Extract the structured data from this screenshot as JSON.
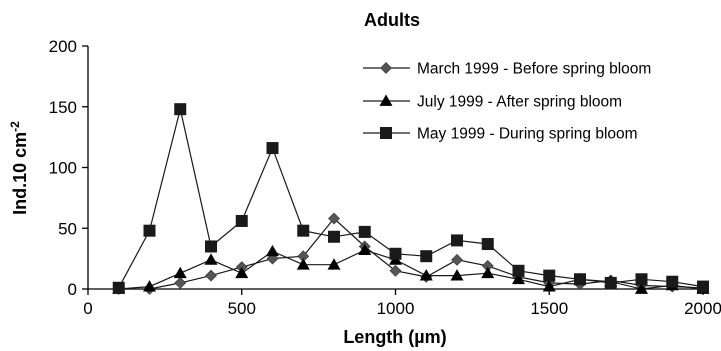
{
  "chart_data": {
    "type": "line",
    "title": "Adults",
    "xlabel": "Length (µm)",
    "ylabel_main": "Ind.10 cm",
    "ylabel_sup": "-2",
    "xlim": [
      0,
      2000
    ],
    "ylim": [
      0,
      200
    ],
    "xticks": [
      "0",
      "500",
      "1000",
      "1500",
      "2000"
    ],
    "yticks": [
      "0",
      "50",
      "100",
      "150",
      "200"
    ],
    "grid": false,
    "legend_position": "top-right",
    "colors": {
      "line": "#1a1a1a",
      "marker_diamond": "#555555",
      "marker_triangle": "#000000",
      "marker_square": "#1a1a1a"
    },
    "series": [
      {
        "name": "March 1999 - Before spring bloom",
        "marker": "diamond",
        "x": [
          100,
          200,
          300,
          400,
          500,
          600,
          700,
          800,
          900,
          1000,
          1100,
          1200,
          1300,
          1400,
          1500,
          1600,
          1700,
          1800,
          1900,
          2000
        ],
        "y": [
          0,
          0,
          5,
          11,
          18,
          25,
          27,
          58,
          35,
          15,
          10,
          24,
          19,
          10,
          5,
          4,
          7,
          3,
          2,
          1
        ]
      },
      {
        "name": "July 1999 - After spring bloom",
        "marker": "triangle",
        "x": [
          100,
          200,
          300,
          400,
          500,
          600,
          700,
          800,
          900,
          1000,
          1100,
          1200,
          1300,
          1400,
          1500,
          1600,
          1700,
          1800,
          1900,
          2000
        ],
        "y": [
          0,
          2,
          13,
          24,
          13,
          31,
          20,
          20,
          32,
          24,
          11,
          11,
          13,
          8,
          2,
          8,
          6,
          0,
          3,
          0
        ]
      },
      {
        "name": "May 1999 - During spring bloom",
        "marker": "square",
        "x": [
          100,
          200,
          300,
          400,
          500,
          600,
          700,
          800,
          900,
          1000,
          1100,
          1200,
          1300,
          1400,
          1500,
          1600,
          1700,
          1800,
          1900,
          2000
        ],
        "y": [
          1,
          48,
          148,
          35,
          56,
          116,
          48,
          43,
          47,
          29,
          27,
          40,
          37,
          15,
          11,
          8,
          5,
          8,
          6,
          2
        ]
      }
    ]
  }
}
